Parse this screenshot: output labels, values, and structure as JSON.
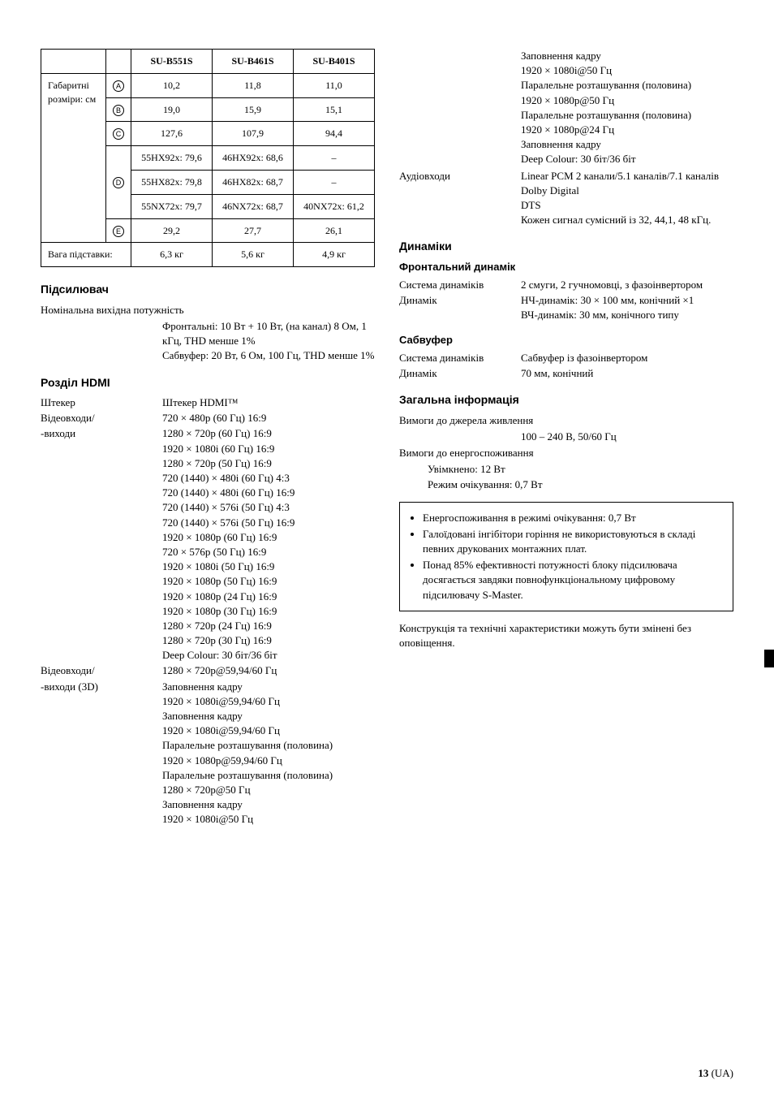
{
  "table": {
    "headers": [
      "",
      "",
      "SU-B551S",
      "SU-B461S",
      "SU-B401S"
    ],
    "dim_label": "Габаритні розміри: см",
    "rows": [
      {
        "letter": "A",
        "cells": [
          "10,2",
          "11,8",
          "11,0"
        ]
      },
      {
        "letter": "B",
        "cells": [
          "19,0",
          "15,9",
          "15,1"
        ]
      },
      {
        "letter": "C",
        "cells": [
          "127,6",
          "107,9",
          "94,4"
        ]
      }
    ],
    "d_letter": "D",
    "d_rows": [
      [
        "55HX92x: 79,6",
        "46HX92x: 68,6",
        "–"
      ],
      [
        "55HX82x: 79,8",
        "46HX82x: 68,7",
        "–"
      ],
      [
        "55NX72x: 79,7",
        "46NX72x: 68,7",
        "40NX72x: 61,2"
      ]
    ],
    "e_row": {
      "letter": "E",
      "cells": [
        "29,2",
        "27,7",
        "26,1"
      ]
    },
    "weight_label": "Вага підставки:",
    "weight_cells": [
      "6,3 кг",
      "5,6 кг",
      "4,9 кг"
    ]
  },
  "amp": {
    "title": "Підсилювач",
    "line1": "Номінальна вихідна потужність",
    "body": "Фронтальні: 10 Вт + 10 Вт, (на канал) 8 Ом, 1 кГц, THD менше 1%\nСабвуфер: 20 Вт, 6 Ом, 100 Гц, THD менше 1%"
  },
  "hdmi": {
    "title": "Розділ HDMI",
    "plug_k": "Штекер",
    "plug_v": "Штекер HDMI™",
    "vio_k1": "Відеовходи/",
    "vio_k2": "-виходи",
    "vio_lines": [
      "720 × 480p (60 Гц) 16:9",
      "1280 × 720p (60 Гц) 16:9",
      "1920 × 1080i (60 Гц) 16:9",
      "1280 × 720p (50 Гц) 16:9",
      "720 (1440) × 480i (60 Гц) 4:3",
      "720 (1440) × 480i (60 Гц) 16:9",
      "720 (1440) × 576i (50 Гц) 4:3",
      "720 (1440) × 576i (50 Гц) 16:9",
      "1920 × 1080p (60 Гц) 16:9",
      "720 × 576p (50 Гц) 16:9",
      "1920 × 1080i (50 Гц) 16:9",
      "1920 × 1080p (50 Гц) 16:9",
      "1920 × 1080p (24 Гц) 16:9",
      "1920 × 1080p (30 Гц) 16:9",
      "1280 × 720p (24 Гц) 16:9",
      "1280 × 720p (30 Гц) 16:9",
      "Deep Colour: 30 біт/36 біт"
    ],
    "v3d_k1": "Відеовходи/",
    "v3d_k2": "-виходи (3D)",
    "v3d_first": "1280 × 720p@59,94/60 Гц",
    "v3d_lines": [
      "Заповнення кадру",
      "1920 × 1080i@59,94/60 Гц",
      "Заповнення кадру",
      "1920 × 1080i@59,94/60 Гц",
      "Паралельне розташування (половина)",
      "1920 × 1080p@59,94/60 Гц",
      "Паралельне розташування (половина)",
      "1280 × 720p@50 Гц",
      "Заповнення кадру",
      "1920 × 1080i@50 Гц"
    ]
  },
  "right_top_lines": [
    "Заповнення кадру",
    "1920 × 1080i@50 Гц",
    "Паралельне розташування (половина)",
    "1920 × 1080p@50 Гц",
    "Паралельне розташування (половина)",
    "1920 × 1080p@24 Гц",
    "Заповнення кадру",
    "Deep Colour: 30 біт/36 біт"
  ],
  "audio_k": "Аудіовходи",
  "audio_lines": [
    "Linear PCM 2 канали/5.1 каналів/7.1 каналів",
    "Dolby Digital",
    "DTS",
    "Кожен сигнал сумісний із 32, 44,1, 48 кГц."
  ],
  "speakers": {
    "title": "Динаміки",
    "front_title": "Фронтальний динамік",
    "sys_k": "Система динаміків",
    "sys_v": "2 смуги, 2 гучномовці, з фазоінвертором",
    "drv_k": "Динамік",
    "drv_v": "НЧ-динамік: 30 × 100 мм, конічний ×1\nВЧ-динамік: 30 мм, конічного типу",
    "sub_title": "Сабвуфер",
    "sub_sys_k": "Система динаміків",
    "sub_sys_v": "Сабвуфер із фазоінвертором",
    "sub_drv_k": "Динамік",
    "sub_drv_v": "70 мм, конічний"
  },
  "general": {
    "title": "Загальна інформація",
    "pwr_req": "Вимоги до джерела живлення",
    "pwr_val": "100 – 240 В, 50/60 Гц",
    "cons_req": "Вимоги до енергоспоживання",
    "cons_on": "Увімкнено: 12 Вт",
    "cons_standby": "Режим очікування: 0,7 Вт"
  },
  "box_items": [
    "Енергоспоживання в режимі очікування: 0,7 Вт",
    "Галоїдовані інгібітори горіння не використовуються в складі певних друкованих монтажних плат.",
    "Понад 85% ефективності потужності блоку підсилювача досягається завдяки повнофункціональному цифровому підсилювачу S-Master."
  ],
  "footnote": "Конструкція та технічні характеристики можуть бути змінені без оповіщення.",
  "page": {
    "num": "13",
    "suffix": " (UA)"
  }
}
